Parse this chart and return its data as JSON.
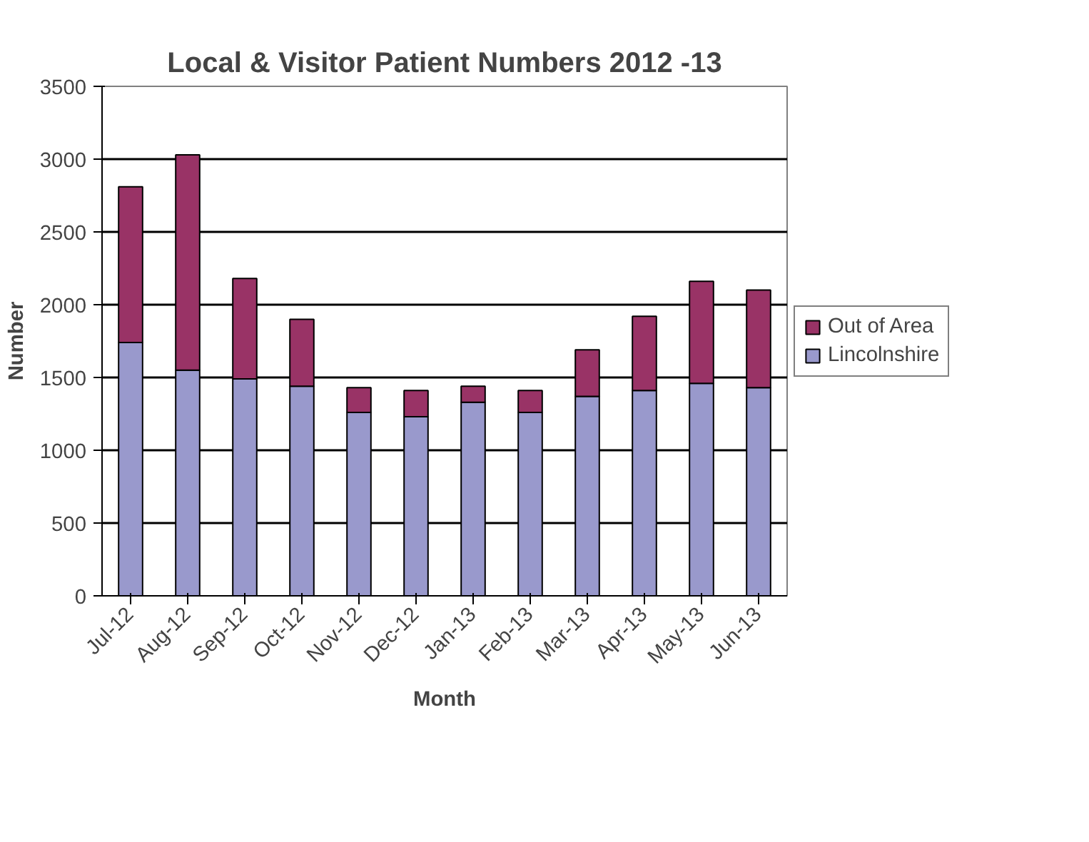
{
  "chart_data": {
    "type": "bar",
    "title": "Local & Visitor Patient Numbers 2012 -13",
    "xlabel": "Month",
    "ylabel": "Number",
    "categories": [
      "Jul-12",
      "Aug-12",
      "Sep-12",
      "Oct-12",
      "Nov-12",
      "Dec-12",
      "Jan-13",
      "Feb-13",
      "Mar-13",
      "Apr-13",
      "May-13",
      "Jun-13"
    ],
    "stacked": true,
    "series": [
      {
        "name": "Lincolnshire",
        "color": "#9999cc",
        "values": [
          1740,
          1550,
          1490,
          1440,
          1260,
          1230,
          1330,
          1260,
          1370,
          1410,
          1460,
          1430
        ]
      },
      {
        "name": "Out of Area",
        "color": "#993366",
        "values": [
          1070,
          1480,
          690,
          460,
          170,
          180,
          110,
          150,
          320,
          510,
          700,
          670
        ]
      }
    ],
    "ylim": [
      0,
      3500
    ],
    "yticks": [
      0,
      500,
      1000,
      1500,
      2000,
      2500,
      3000,
      3500
    ],
    "grid": "y",
    "legend": "right"
  }
}
